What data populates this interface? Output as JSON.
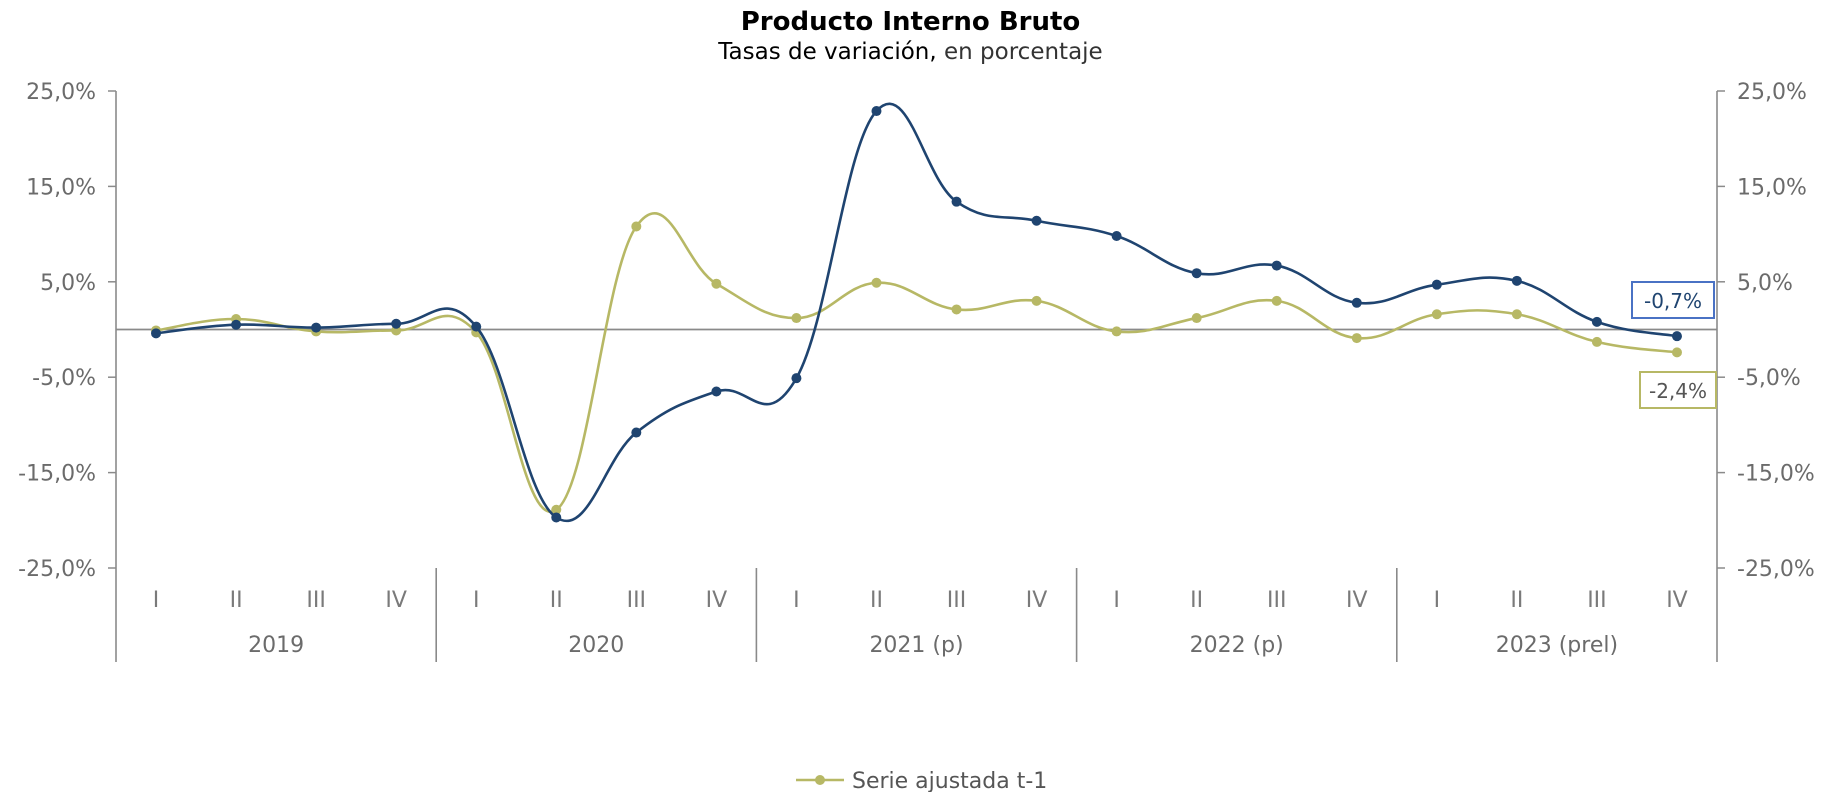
{
  "chart_data": {
    "type": "line",
    "title": "Producto Interno Bruto",
    "subtitle_main": "Tasas de variación,",
    "subtitle_rest": " en porcentaje",
    "y_ticks": [
      "25,0%",
      "15,0%",
      "5,0%",
      "-5,0%",
      "-15,0%",
      "-25,0%"
    ],
    "ylim": [
      -25,
      25
    ],
    "y_tick_values": [
      25,
      15,
      5,
      -5,
      -15,
      -25
    ],
    "quarters": [
      "I",
      "II",
      "III",
      "IV"
    ],
    "years": [
      "2019",
      "2020",
      "2021 (p)",
      "2022 (p)",
      "2023 (prel)"
    ],
    "grid": false,
    "series": [
      {
        "name": "",
        "color": "#1f4470",
        "values": [
          -0.4,
          0.5,
          0.2,
          0.6,
          0.3,
          -19.7,
          -10.8,
          -6.5,
          -5.1,
          22.9,
          13.4,
          11.4,
          9.8,
          5.9,
          6.7,
          2.8,
          4.7,
          5.1,
          0.8,
          -0.7
        ],
        "end_label": "-0,7%"
      },
      {
        "name": "Serie ajustada t-1",
        "color": "#b7b865",
        "values": [
          -0.1,
          1.1,
          -0.2,
          -0.1,
          -0.3,
          -18.9,
          10.8,
          4.8,
          1.2,
          4.9,
          2.1,
          3.0,
          -0.2,
          1.2,
          3.0,
          -0.9,
          1.6,
          1.6,
          -1.3,
          -2.4
        ],
        "end_label": "-2,4%"
      }
    ],
    "legend": [
      "Serie ajustada t-1"
    ],
    "legend_position": "bottom"
  }
}
